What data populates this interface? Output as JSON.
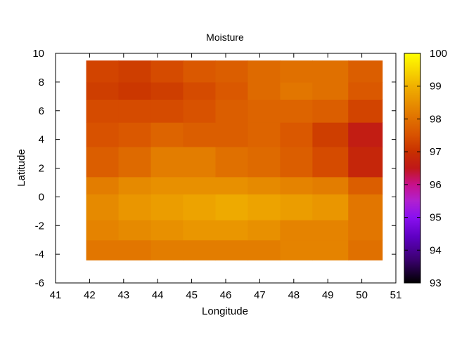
{
  "chart_data": {
    "type": "heatmap",
    "title": "Moisture",
    "xlabel": "Longitude",
    "ylabel": "Latitude",
    "xlim": [
      41,
      51
    ],
    "ylim": [
      -6,
      10
    ],
    "xticks": [
      41,
      42,
      43,
      44,
      45,
      46,
      47,
      48,
      49,
      50,
      51
    ],
    "yticks": [
      -6,
      -4,
      -2,
      0,
      2,
      4,
      6,
      8,
      10
    ],
    "colorbar": {
      "range": [
        93,
        100
      ],
      "ticks": [
        93,
        94,
        95,
        96,
        97,
        98,
        99,
        100
      ],
      "stops": [
        {
          "v": 93.0,
          "color": "#000000"
        },
        {
          "v": 93.7,
          "color": "#3a006e"
        },
        {
          "v": 94.4,
          "color": "#5e00c2"
        },
        {
          "v": 95.0,
          "color": "#8a10f0"
        },
        {
          "v": 95.5,
          "color": "#b020d0"
        },
        {
          "v": 96.0,
          "color": "#c8108a"
        },
        {
          "v": 96.5,
          "color": "#c01818"
        },
        {
          "v": 97.0,
          "color": "#c83000"
        },
        {
          "v": 97.5,
          "color": "#d85200"
        },
        {
          "v": 98.0,
          "color": "#e07000"
        },
        {
          "v": 98.5,
          "color": "#e89000"
        },
        {
          "v": 99.0,
          "color": "#f0b000"
        },
        {
          "v": 99.5,
          "color": "#f8d800"
        },
        {
          "v": 100.0,
          "color": "#ffff00"
        }
      ]
    },
    "x_edges": [
      41.9,
      42.85,
      43.8,
      44.75,
      45.7,
      46.65,
      47.6,
      48.55,
      49.6,
      50.6
    ],
    "y_edges": [
      -4.4,
      -3.0,
      -1.6,
      0.2,
      1.4,
      3.5,
      5.2,
      6.8,
      8.0,
      9.5
    ],
    "values": [
      [
        98.1,
        98.1,
        98.2,
        98.2,
        98.2,
        98.2,
        98.3,
        98.3,
        98.0
      ],
      [
        98.3,
        98.4,
        98.5,
        98.6,
        98.6,
        98.5,
        98.3,
        98.3,
        98.1
      ],
      [
        98.4,
        98.6,
        98.7,
        98.8,
        98.9,
        98.8,
        98.7,
        98.6,
        98.1
      ],
      [
        98.2,
        98.4,
        98.5,
        98.5,
        98.5,
        98.4,
        98.3,
        98.2,
        97.7
      ],
      [
        97.7,
        97.9,
        98.2,
        98.2,
        98.0,
        97.9,
        97.7,
        97.4,
        96.8
      ],
      [
        97.5,
        97.6,
        97.8,
        97.7,
        97.7,
        97.8,
        97.6,
        97.2,
        96.6
      ],
      [
        97.4,
        97.4,
        97.4,
        97.5,
        97.7,
        97.8,
        97.8,
        97.7,
        97.3
      ],
      [
        97.2,
        97.1,
        97.2,
        97.4,
        97.6,
        97.9,
        98.1,
        98.0,
        97.6
      ],
      [
        97.3,
        97.2,
        97.4,
        97.6,
        97.7,
        97.9,
        98.0,
        98.0,
        97.7
      ]
    ]
  }
}
